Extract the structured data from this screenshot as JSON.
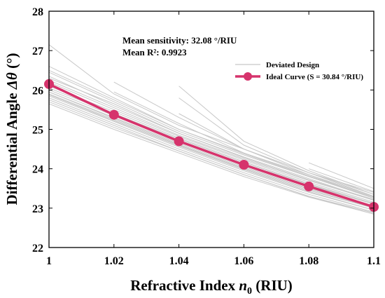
{
  "chart_data": {
    "type": "line",
    "xlabel_main": "Refractive Index",
    "xlabel_var": "n",
    "xlabel_sub": "0",
    "xlabel_unit": "(RIU)",
    "ylabel_main": "Differential Angle",
    "ylabel_var": "Δθ",
    "ylabel_unit": "(°)",
    "xlim": [
      1.0,
      1.1
    ],
    "ylim": [
      22,
      28
    ],
    "x_ticks": [
      1.0,
      1.02,
      1.04,
      1.06,
      1.08,
      1.1
    ],
    "x_tick_labels": [
      "1",
      "1.02",
      "1.04",
      "1.06",
      "1.08",
      "1.1"
    ],
    "y_ticks": [
      22,
      23,
      24,
      25,
      26,
      27,
      28
    ],
    "y_tick_labels": [
      "22",
      "23",
      "24",
      "25",
      "26",
      "27",
      "28"
    ],
    "grid": false,
    "legend_position": "upper-right",
    "annotations": {
      "mean_sensitivity": "Mean sensitivity: 32.08 °/RIU",
      "mean_r2": "Mean R²: 0.9923"
    },
    "series": [
      {
        "name": "Ideal Curve (S = 30.84 °/RIU)",
        "color": "#d6336c",
        "x": [
          1.0,
          1.02,
          1.04,
          1.06,
          1.08,
          1.1
        ],
        "y": [
          26.15,
          25.37,
          24.7,
          24.1,
          23.55,
          23.03
        ]
      }
    ],
    "deviated_legend": "Deviated Design",
    "deviated_color": "#c8c8c8",
    "deviated_series": [
      {
        "x": [
          1.0,
          1.02,
          1.04,
          1.06,
          1.08,
          1.1
        ],
        "y": [
          27.15,
          25.9,
          25.1,
          24.5,
          23.9,
          23.4
        ]
      },
      {
        "x": [
          1.0,
          1.02,
          1.04,
          1.06,
          1.08,
          1.1
        ],
        "y": [
          26.6,
          25.8,
          25.0,
          24.4,
          23.85,
          23.3
        ]
      },
      {
        "x": [
          1.0,
          1.02,
          1.04,
          1.06,
          1.08,
          1.1
        ],
        "y": [
          26.45,
          25.7,
          24.95,
          24.35,
          23.8,
          23.25
        ]
      },
      {
        "x": [
          1.0,
          1.02,
          1.04,
          1.06,
          1.08,
          1.1
        ],
        "y": [
          26.35,
          25.6,
          24.9,
          24.3,
          23.75,
          23.2
        ]
      },
      {
        "x": [
          1.0,
          1.02,
          1.04,
          1.06,
          1.08,
          1.1
        ],
        "y": [
          26.25,
          25.55,
          24.85,
          24.25,
          23.7,
          23.2
        ]
      },
      {
        "x": [
          1.0,
          1.02,
          1.04,
          1.06,
          1.08,
          1.1
        ],
        "y": [
          26.05,
          25.4,
          24.75,
          24.15,
          23.6,
          23.1
        ]
      },
      {
        "x": [
          1.0,
          1.02,
          1.04,
          1.06,
          1.08,
          1.1
        ],
        "y": [
          25.95,
          25.3,
          24.65,
          24.05,
          23.5,
          23.05
        ]
      },
      {
        "x": [
          1.0,
          1.02,
          1.04,
          1.06,
          1.08,
          1.1
        ],
        "y": [
          25.9,
          25.25,
          24.6,
          24.0,
          23.45,
          23.0
        ]
      },
      {
        "x": [
          1.0,
          1.02,
          1.04,
          1.06,
          1.08,
          1.1
        ],
        "y": [
          25.85,
          25.2,
          24.55,
          23.95,
          23.4,
          22.95
        ]
      },
      {
        "x": [
          1.0,
          1.02,
          1.04,
          1.06,
          1.08,
          1.1
        ],
        "y": [
          25.8,
          25.15,
          24.5,
          23.9,
          23.35,
          22.9
        ]
      },
      {
        "x": [
          1.0,
          1.02,
          1.04,
          1.06,
          1.08,
          1.1
        ],
        "y": [
          25.75,
          25.1,
          24.45,
          23.85,
          23.3,
          22.88
        ]
      },
      {
        "x": [
          1.0,
          1.02,
          1.04,
          1.06,
          1.08,
          1.1
        ],
        "y": [
          25.7,
          25.05,
          24.45,
          23.85,
          23.3,
          22.85
        ]
      },
      {
        "x": [
          1.0,
          1.02,
          1.04,
          1.06,
          1.08,
          1.1
        ],
        "y": [
          25.65,
          25.0,
          24.4,
          23.8,
          23.28,
          22.85
        ]
      },
      {
        "x": [
          1.0,
          1.02,
          1.04,
          1.06,
          1.08,
          1.1
        ],
        "y": [
          26.0,
          25.35,
          24.7,
          24.12,
          23.58,
          23.1
        ]
      },
      {
        "x": [
          1.0,
          1.02,
          1.04,
          1.06,
          1.08,
          1.1
        ],
        "y": [
          26.1,
          25.45,
          24.78,
          24.18,
          23.62,
          23.12
        ]
      },
      {
        "x": [
          1.0,
          1.02,
          1.04,
          1.06,
          1.08,
          1.1
        ],
        "y": [
          26.2,
          25.5,
          24.82,
          24.22,
          23.66,
          23.15
        ]
      },
      {
        "x": [
          1.0,
          1.02,
          1.04,
          1.06,
          1.08,
          1.1
        ],
        "y": [
          26.3,
          25.65,
          24.9,
          24.28,
          23.72,
          23.22
        ]
      },
      {
        "x": [
          1.0,
          1.02,
          1.04,
          1.06,
          1.08,
          1.1
        ],
        "y": [
          26.5,
          25.75,
          25.0,
          24.38,
          23.8,
          23.28
        ]
      },
      {
        "x": [
          1.0,
          1.02,
          1.04,
          1.06,
          1.08,
          1.1
        ],
        "y": [
          25.95,
          25.28,
          24.62,
          24.02,
          23.48,
          23.0
        ]
      },
      {
        "x": [
          1.0,
          1.02,
          1.04,
          1.06,
          1.08,
          1.1
        ],
        "y": [
          25.88,
          25.22,
          24.58,
          23.98,
          23.42,
          22.95
        ]
      },
      {
        "x": [
          1.02,
          1.04,
          1.06,
          1.08,
          1.1
        ],
        "y": [
          26.2,
          25.3,
          24.5,
          23.9,
          23.35
        ]
      },
      {
        "x": [
          1.02,
          1.04,
          1.06,
          1.08,
          1.1
        ],
        "y": [
          25.95,
          25.15,
          24.4,
          23.82,
          23.28
        ]
      },
      {
        "x": [
          1.04,
          1.06,
          1.08,
          1.1
        ],
        "y": [
          26.1,
          24.7,
          23.95,
          23.35
        ]
      },
      {
        "x": [
          1.04,
          1.06,
          1.08,
          1.1
        ],
        "y": [
          25.8,
          24.6,
          23.9,
          23.3
        ]
      },
      {
        "x": [
          1.04,
          1.06,
          1.08,
          1.1
        ],
        "y": [
          25.4,
          24.5,
          23.85,
          23.25
        ]
      },
      {
        "x": [
          1.08,
          1.1
        ],
        "y": [
          24.15,
          23.5
        ]
      },
      {
        "x": [
          1.08,
          1.1
        ],
        "y": [
          24.0,
          23.42
        ]
      }
    ]
  }
}
